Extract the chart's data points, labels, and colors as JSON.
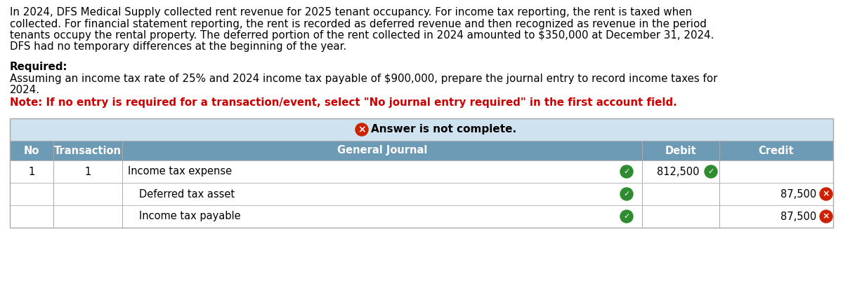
{
  "bg_color": "#ffffff",
  "paragraph_lines": [
    "In 2024, DFS Medical Supply collected rent revenue for 2025 tenant occupancy. For income tax reporting, the rent is taxed when",
    "collected. For financial statement reporting, the rent is recorded as deferred revenue and then recognized as revenue in the period",
    "tenants occupy the rental property. The deferred portion of the rent collected in 2024 amounted to $350,000 at December 31, 2024.",
    "DFS had no temporary differences at the beginning of the year."
  ],
  "required_label": "Required:",
  "required_body_lines": [
    "Assuming an income tax rate of 25% and 2024 income tax payable of $900,000, prepare the journal entry to record income taxes for",
    "2024."
  ],
  "note_text": "Note: If no entry is required for a transaction/event, select \"No journal entry required\" in the first account field.",
  "note_color": "#cc0000",
  "answer_banner_bg": "#cfe2f0",
  "answer_banner_text": "Answer is not complete.",
  "table_header_bg": "#6d9ab5",
  "table_header_color": "#ffffff",
  "table_border_color": "#aaaaaa",
  "table_row_bg": "#ffffff",
  "col_headers": [
    "No",
    "Transaction",
    "General Journal",
    "Debit",
    "Credit"
  ],
  "rows": [
    {
      "no": "1",
      "transaction": "1",
      "journal": "Income tax expense",
      "debit": "812,500",
      "credit": "",
      "journal_check": "green",
      "debit_check": "green",
      "credit_mark": "none"
    },
    {
      "no": "",
      "transaction": "",
      "journal": "Deferred tax asset",
      "debit": "",
      "credit": "87,500",
      "journal_check": "green",
      "debit_check": "none",
      "credit_mark": "red_x"
    },
    {
      "no": "",
      "transaction": "",
      "journal": "Income tax payable",
      "debit": "",
      "credit": "87,500",
      "journal_check": "green",
      "debit_check": "none",
      "credit_mark": "red_x"
    }
  ],
  "font_size_para": 10.8,
  "font_size_table_header": 10.5,
  "font_size_table_body": 10.5
}
